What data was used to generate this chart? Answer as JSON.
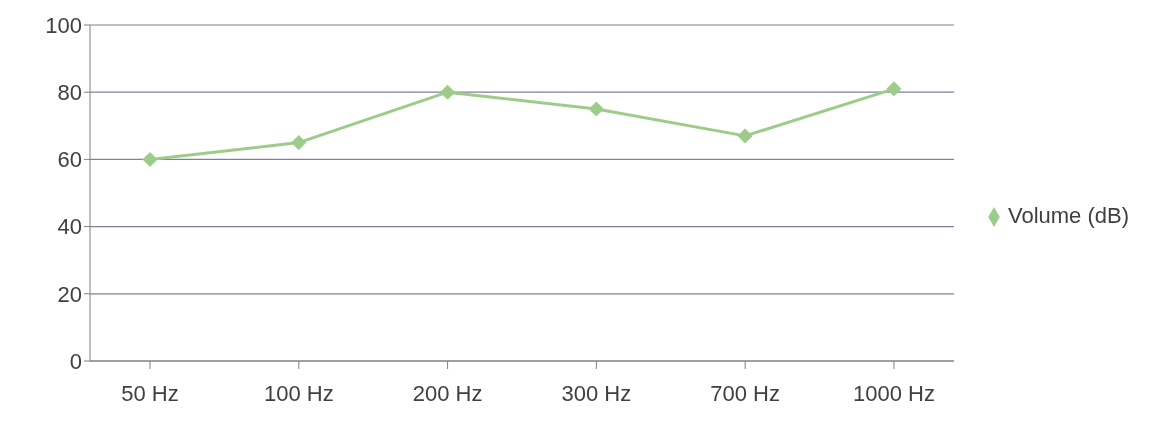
{
  "chart_data": {
    "type": "line",
    "categories": [
      "50 Hz",
      "100 Hz",
      "200 Hz",
      "300 Hz",
      "700 Hz",
      "1000 Hz"
    ],
    "series": [
      {
        "name": "Volume (dB)",
        "color": "#9dcc8a",
        "values": [
          60,
          65,
          80,
          75,
          67,
          81
        ]
      }
    ],
    "ylim": [
      0,
      100
    ],
    "yticks": [
      0,
      20,
      40,
      60,
      80,
      100
    ],
    "grid": "y",
    "legend": "right",
    "marker": "diamond",
    "line_style": "solid"
  }
}
